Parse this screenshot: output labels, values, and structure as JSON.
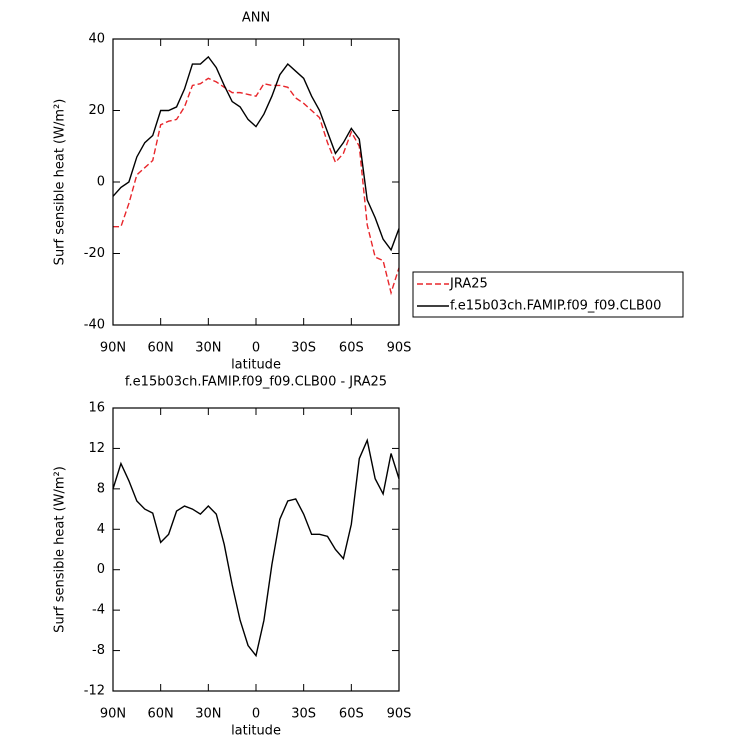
{
  "chart_data": [
    {
      "type": "line",
      "title": "ANN",
      "xlabel": "latitude",
      "ylabel": "Surf sensible heat (W/m²)",
      "x": [
        90,
        85,
        80,
        75,
        70,
        65,
        60,
        55,
        50,
        45,
        40,
        35,
        30,
        25,
        20,
        15,
        10,
        5,
        0,
        -5,
        -10,
        -15,
        -20,
        -25,
        -30,
        -35,
        -40,
        -45,
        -50,
        -55,
        -60,
        -65,
        -70,
        -75,
        -80,
        -85,
        -90
      ],
      "xlim": [
        90,
        -90
      ],
      "xticks": [
        {
          "value": 90,
          "label": "90N"
        },
        {
          "value": 60,
          "label": "60N"
        },
        {
          "value": 30,
          "label": "30N"
        },
        0,
        {
          "value": -30,
          "label": "30S"
        },
        {
          "value": -60,
          "label": "60S"
        },
        {
          "value": -90,
          "label": "90S"
        }
      ],
      "ylim": [
        -40,
        40
      ],
      "yticks": [
        40,
        20,
        0,
        -20,
        -40
      ],
      "legend": "right",
      "series": [
        {
          "name": "JRA25",
          "color": "#e8262b",
          "dashed": true,
          "values": [
            -12.5,
            -12.5,
            -6,
            2,
            4,
            6,
            16,
            17,
            17.5,
            21,
            27,
            27.5,
            29,
            28,
            26.5,
            25,
            25,
            24.5,
            24,
            27.5,
            27,
            27,
            26.5,
            23.5,
            22,
            20,
            18,
            11,
            5.5,
            8,
            14,
            10,
            -12,
            -21,
            -22,
            -31,
            -24
          ]
        },
        {
          "name": "f.e15b03ch.FAMIP.f09_f09.CLB00",
          "color": "#000000",
          "dashed": false,
          "values": [
            -4,
            -1.5,
            0,
            7,
            11,
            13,
            20,
            20,
            21,
            26,
            33,
            33,
            35,
            32,
            27,
            22.5,
            21,
            17.5,
            15.5,
            19,
            24,
            30,
            33,
            31,
            29,
            24,
            20,
            14,
            8,
            11,
            15,
            12,
            -5,
            -10,
            -16,
            -19,
            -13
          ]
        }
      ]
    },
    {
      "type": "line",
      "title": "f.e15b03ch.FAMIP.f09_f09.CLB00 - JRA25",
      "xlabel": "latitude",
      "ylabel": "Surf sensible heat (W/m²)",
      "x": [
        90,
        85,
        80,
        75,
        70,
        65,
        60,
        55,
        50,
        45,
        40,
        35,
        30,
        25,
        20,
        15,
        10,
        5,
        0,
        -5,
        -10,
        -15,
        -20,
        -25,
        -30,
        -35,
        -40,
        -45,
        -50,
        -55,
        -60,
        -65,
        -70,
        -75,
        -80,
        -85,
        -90
      ],
      "xlim": [
        90,
        -90
      ],
      "xticks": [
        {
          "value": 90,
          "label": "90N"
        },
        {
          "value": 60,
          "label": "60N"
        },
        {
          "value": 30,
          "label": "30N"
        },
        0,
        {
          "value": -30,
          "label": "30S"
        },
        {
          "value": -60,
          "label": "60S"
        },
        {
          "value": -90,
          "label": "90S"
        }
      ],
      "ylim": [
        -12,
        16
      ],
      "yticks": [
        16,
        12,
        8,
        4,
        0,
        -4,
        -8,
        -12
      ],
      "series": [
        {
          "color": "#000000",
          "dashed": false,
          "values": [
            8,
            10.5,
            8.8,
            6.8,
            6,
            5.6,
            2.7,
            3.5,
            5.8,
            6.3,
            6,
            5.5,
            6.3,
            5.5,
            2.5,
            -1.5,
            -5,
            -7.5,
            -8.5,
            -5,
            0.5,
            5,
            6.8,
            7,
            5.5,
            3.5,
            3.5,
            3.3,
            2,
            1.1,
            4.5,
            11,
            12.8,
            9,
            7.5,
            11.5,
            9
          ]
        }
      ]
    }
  ]
}
